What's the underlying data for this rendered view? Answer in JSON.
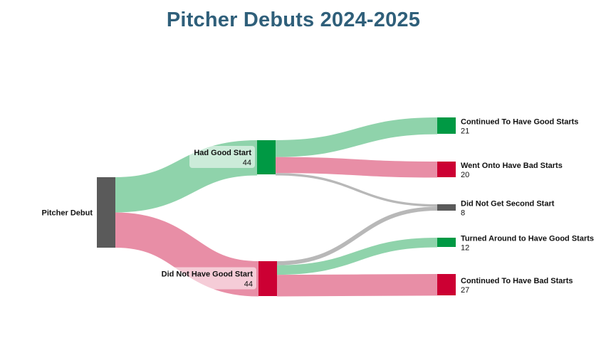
{
  "title": "Pitcher Debuts 2024-2025",
  "colors": {
    "title": "#2f5f7a",
    "good_node": "#009944",
    "bad_node": "#cc0033",
    "neutral_node": "#5a5a5a",
    "good_link": "#8fd3ab",
    "bad_link": "#e88ea6",
    "neutral_link": "#b8b8b8"
  },
  "nodes": [
    {
      "id": "debut",
      "name": "Pitcher Debut",
      "value": "",
      "color": "neutral"
    },
    {
      "id": "good",
      "name": "Had Good Start",
      "value": "44",
      "color": "good"
    },
    {
      "id": "bad",
      "name": "Did Not Have Good Start",
      "value": "44",
      "color": "bad"
    },
    {
      "id": "cont_good",
      "name": "Continued To Have Good Starts",
      "value": "21",
      "color": "good"
    },
    {
      "id": "went_bad",
      "name": "Went Onto Have Bad Starts",
      "value": "20",
      "color": "bad"
    },
    {
      "id": "no_second",
      "name": "Did Not Get Second Start",
      "value": "8",
      "color": "neutral"
    },
    {
      "id": "turned",
      "name": "Turned Around to Have Good Starts",
      "value": "12",
      "color": "good"
    },
    {
      "id": "cont_bad",
      "name": "Continued To Have Bad Starts",
      "value": "27",
      "color": "bad"
    }
  ],
  "links": [
    {
      "source": "debut",
      "target": "good",
      "value": 44,
      "color": "good"
    },
    {
      "source": "debut",
      "target": "bad",
      "value": 44,
      "color": "bad"
    },
    {
      "source": "good",
      "target": "cont_good",
      "value": 21,
      "color": "good"
    },
    {
      "source": "good",
      "target": "went_bad",
      "value": 20,
      "color": "bad"
    },
    {
      "source": "good",
      "target": "no_second",
      "value": 3,
      "color": "neutral"
    },
    {
      "source": "bad",
      "target": "no_second",
      "value": 5,
      "color": "neutral"
    },
    {
      "source": "bad",
      "target": "turned",
      "value": 12,
      "color": "good"
    },
    {
      "source": "bad",
      "target": "cont_bad",
      "value": 27,
      "color": "bad"
    }
  ]
}
